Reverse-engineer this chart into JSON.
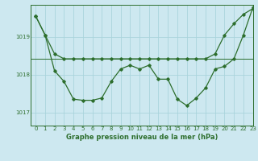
{
  "background_color": "#cde8f0",
  "grid_color": "#aad4dc",
  "line_color": "#2d6e2d",
  "title": "Graphe pression niveau de la mer (hPa)",
  "xlim": [
    -0.5,
    23
  ],
  "ylim": [
    1016.65,
    1019.85
  ],
  "yticks": [
    1017,
    1018,
    1019
  ],
  "xticks": [
    0,
    1,
    2,
    3,
    4,
    5,
    6,
    7,
    8,
    9,
    10,
    11,
    12,
    13,
    14,
    15,
    16,
    17,
    18,
    19,
    20,
    21,
    22,
    23
  ],
  "series1_x": [
    0,
    1,
    2,
    3,
    4,
    5,
    6,
    7,
    8,
    9,
    10,
    11,
    12,
    13,
    14,
    15,
    16,
    17,
    18,
    19,
    20,
    21,
    22,
    23
  ],
  "series1_y": [
    1019.55,
    1019.05,
    1018.55,
    1018.42,
    1018.42,
    1018.42,
    1018.42,
    1018.42,
    1018.42,
    1018.42,
    1018.42,
    1018.42,
    1018.42,
    1018.42,
    1018.42,
    1018.42,
    1018.42,
    1018.42,
    1018.42,
    1018.55,
    1019.05,
    1019.35,
    1019.6,
    1019.75
  ],
  "series2_x": [
    0,
    1,
    2,
    3,
    4,
    5,
    6,
    7,
    8,
    9,
    10,
    11,
    12,
    13,
    14,
    15,
    16,
    17,
    18,
    19,
    20,
    21,
    22,
    23
  ],
  "series2_y": [
    1019.55,
    1019.05,
    1018.1,
    1017.82,
    1017.35,
    1017.32,
    1017.32,
    1017.38,
    1017.82,
    1018.15,
    1018.25,
    1018.15,
    1018.25,
    1017.88,
    1017.88,
    1017.35,
    1017.18,
    1017.38,
    1017.65,
    1018.15,
    1018.22,
    1018.42,
    1019.05,
    1019.78
  ],
  "hline_y": 1018.42,
  "marker": "D",
  "marker_size": 1.8,
  "line_width": 0.9,
  "tick_fontsize": 5.0,
  "title_fontsize": 6.0
}
